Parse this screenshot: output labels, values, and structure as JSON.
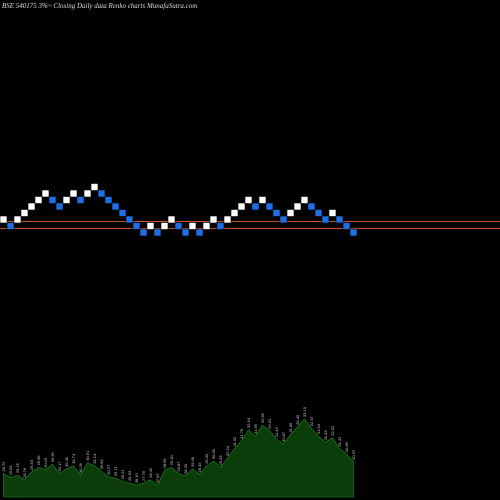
{
  "chart_data": {
    "type": "renko",
    "title": "BSE 540175 3%~  Closing Daily data  Renko  charts MunafaSutra.com",
    "bricks": [
      {
        "dir": "up"
      },
      {
        "dir": "down"
      },
      {
        "dir": "up"
      },
      {
        "dir": "up"
      },
      {
        "dir": "up"
      },
      {
        "dir": "up"
      },
      {
        "dir": "up"
      },
      {
        "dir": "down"
      },
      {
        "dir": "down"
      },
      {
        "dir": "up"
      },
      {
        "dir": "up"
      },
      {
        "dir": "down"
      },
      {
        "dir": "up"
      },
      {
        "dir": "up"
      },
      {
        "dir": "down"
      },
      {
        "dir": "down"
      },
      {
        "dir": "down"
      },
      {
        "dir": "down"
      },
      {
        "dir": "down"
      },
      {
        "dir": "down"
      },
      {
        "dir": "down"
      },
      {
        "dir": "up"
      },
      {
        "dir": "down"
      },
      {
        "dir": "up"
      },
      {
        "dir": "up"
      },
      {
        "dir": "down"
      },
      {
        "dir": "down"
      },
      {
        "dir": "up"
      },
      {
        "dir": "down"
      },
      {
        "dir": "up"
      },
      {
        "dir": "up"
      },
      {
        "dir": "down"
      },
      {
        "dir": "up"
      },
      {
        "dir": "up"
      },
      {
        "dir": "up"
      },
      {
        "dir": "up"
      },
      {
        "dir": "down"
      },
      {
        "dir": "up"
      },
      {
        "dir": "down"
      },
      {
        "dir": "down"
      },
      {
        "dir": "down"
      },
      {
        "dir": "up"
      },
      {
        "dir": "up"
      },
      {
        "dir": "up"
      },
      {
        "dir": "down"
      },
      {
        "dir": "down"
      },
      {
        "dir": "down"
      },
      {
        "dir": "up"
      },
      {
        "dir": "down"
      },
      {
        "dir": "down"
      },
      {
        "dir": "down"
      }
    ],
    "reference_lines": [
      {
        "color": "#c8501e"
      },
      {
        "color": "#c8501e"
      }
    ],
    "volume_labels": [
      "28.72",
      "29.03",
      "29.25",
      "28.76",
      "29.53",
      "29.85",
      "30.19",
      "30.90",
      "30.17",
      "30.45",
      "30.74",
      "30.35",
      "30.91",
      "31.14",
      "30.82",
      "30.27",
      "29.71",
      "29.21",
      "28.63",
      "28.10",
      "27.76",
      "28.42",
      "27.87",
      "28.65",
      "29.30",
      "28.87",
      "28.33",
      "29.09",
      "28.45",
      "29.30",
      "30.05",
      "29.53",
      "30.24",
      "31.02",
      "31.76",
      "32.54",
      "31.96",
      "32.66",
      "32.01",
      "31.43",
      "30.87",
      "31.66",
      "32.40",
      "33.10",
      "32.47",
      "31.94",
      "31.33",
      "32.02",
      "31.41",
      "30.89",
      "30.37"
    ],
    "volume": [
      0.3,
      0.25,
      0.28,
      0.22,
      0.32,
      0.38,
      0.35,
      0.42,
      0.3,
      0.36,
      0.4,
      0.28,
      0.44,
      0.4,
      0.33,
      0.26,
      0.24,
      0.2,
      0.18,
      0.15,
      0.18,
      0.22,
      0.15,
      0.34,
      0.38,
      0.3,
      0.27,
      0.36,
      0.29,
      0.4,
      0.46,
      0.38,
      0.5,
      0.62,
      0.72,
      0.86,
      0.78,
      0.92,
      0.85,
      0.74,
      0.68,
      0.8,
      0.9,
      1.0,
      0.88,
      0.78,
      0.7,
      0.76,
      0.62,
      0.55,
      0.45
    ],
    "colors": {
      "background": "#000000",
      "up_brick": "#ffffff",
      "down_brick": "#1e6ee6",
      "brick_border": "#000000",
      "reference_line": "#c8501e",
      "volume_fill": "#0b3d0b",
      "volume_outline": "#1f8f1f",
      "text": "#dddddd"
    }
  }
}
